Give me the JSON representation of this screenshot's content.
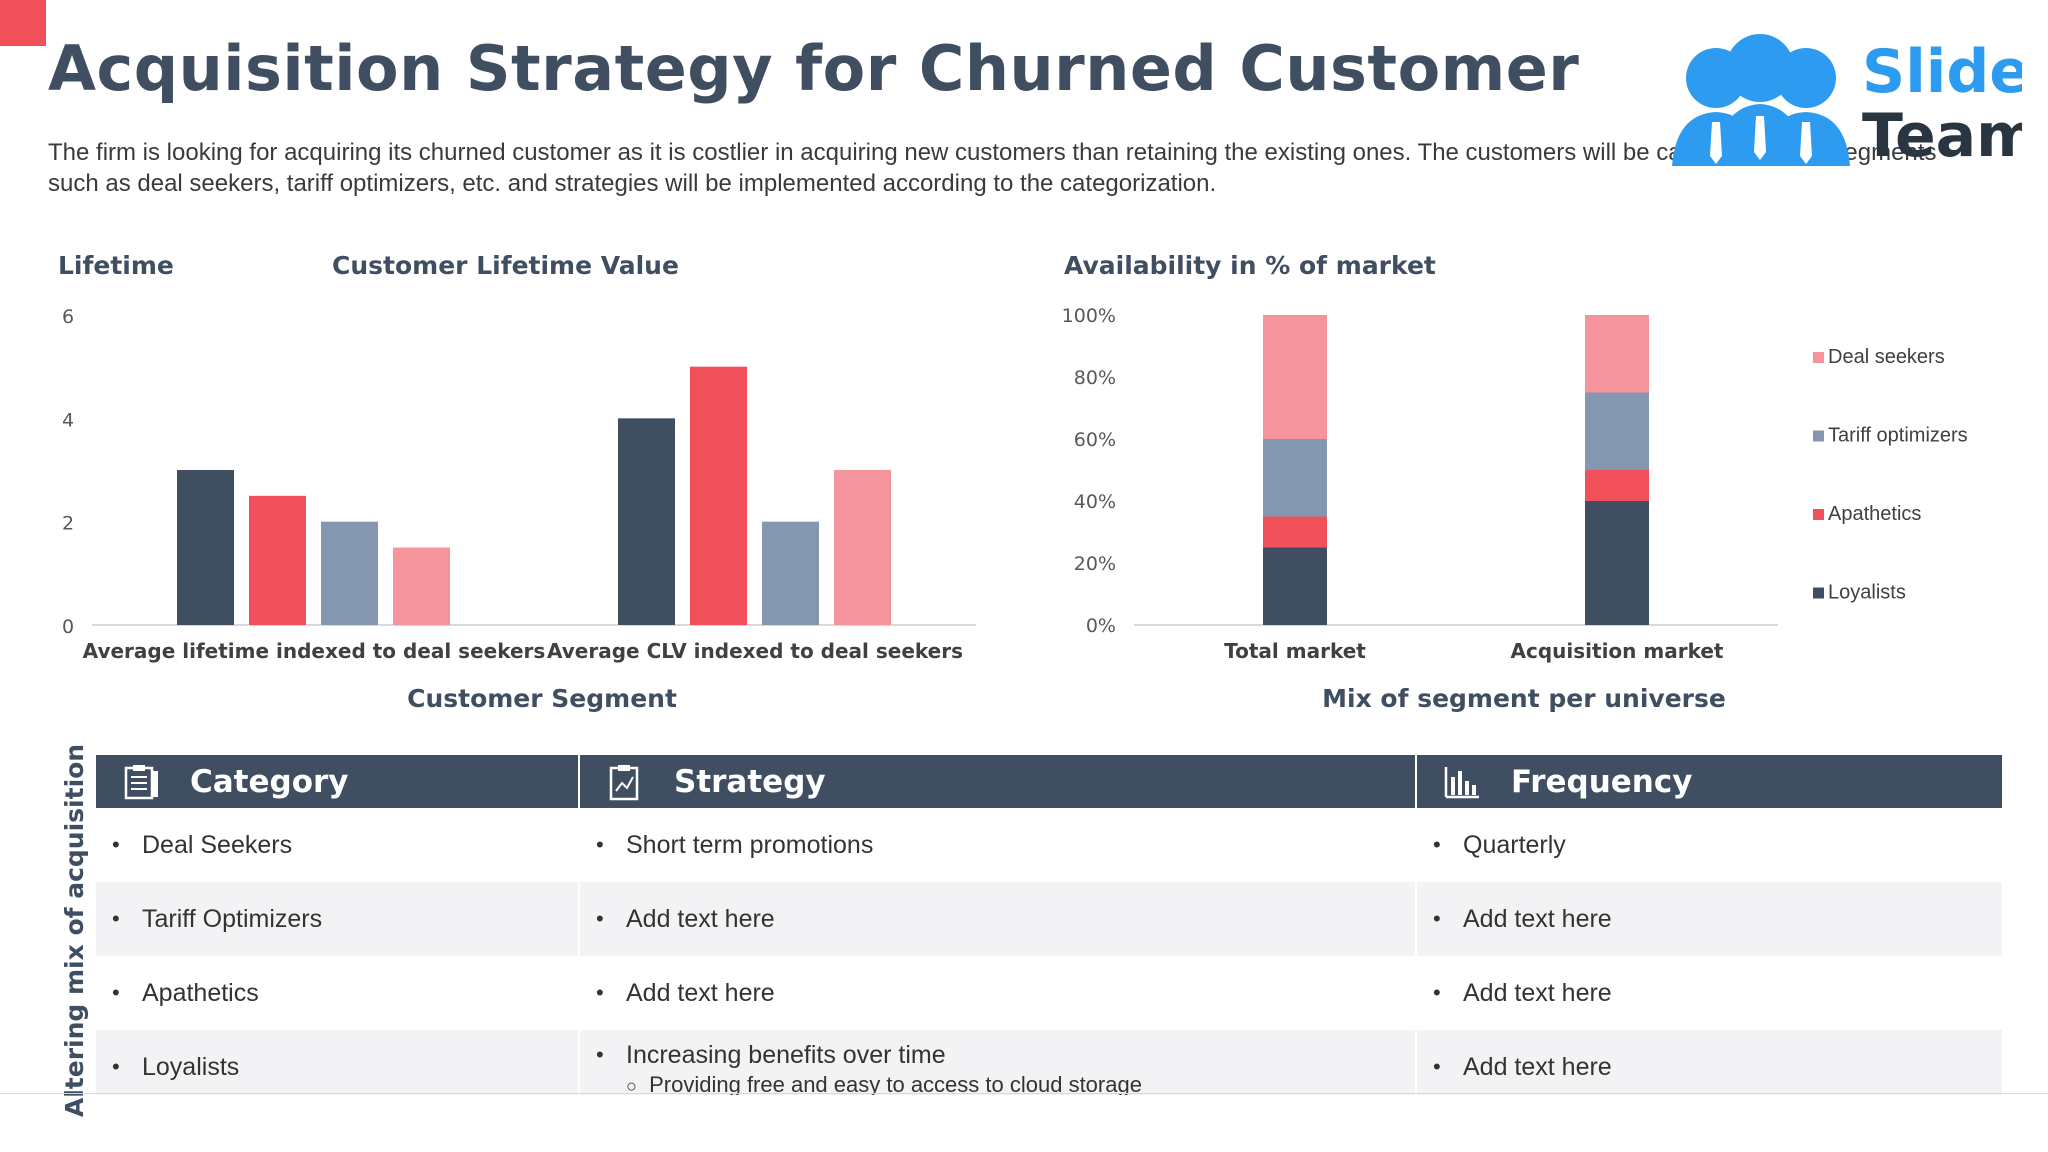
{
  "title": "Acquisition Strategy for Churned Customer",
  "description": "The firm is looking for acquiring its churned customer as it is costlier in acquiring new customers than retaining the existing ones. The customers will be categorized into segments such as deal seekers, tariff optimizers, etc. and strategies will be implemented according to the categorization.",
  "logo": {
    "line1": "Slide",
    "line2": "Team"
  },
  "colors": {
    "loyalists": "#404e62",
    "apathetics": "#f0505a",
    "tariff": "#8496b0",
    "deal": "#f5949c",
    "header": "#404e62"
  },
  "chart_data": [
    {
      "type": "bar",
      "title": "Customer Lifetime Value",
      "ylabel": "Lifetime",
      "xlabel": "Customer Segment",
      "categories": [
        "Average lifetime indexed to deal seekers",
        "Average CLV indexed to deal seekers"
      ],
      "ylim": [
        0,
        6
      ],
      "yticks": [
        "0",
        "2",
        "4",
        "6"
      ],
      "series": [
        {
          "values": [
            3,
            4
          ],
          "color": "#404e62"
        },
        {
          "values": [
            2.5,
            5
          ],
          "color": "#f0505a"
        },
        {
          "values": [
            2,
            2
          ],
          "color": "#8496b0"
        },
        {
          "values": [
            1.5,
            3
          ],
          "color": "#f5949c"
        }
      ],
      "grid": false
    },
    {
      "type": "bar",
      "stacked": true,
      "title": "Availability in % of market",
      "xlabel": "Mix of segment per universe",
      "categories": [
        "Total market",
        "Acquisition market"
      ],
      "ylim": [
        0,
        100
      ],
      "yticks": [
        "0%",
        "20%",
        "40%",
        "60%",
        "80%",
        "100%"
      ],
      "series": [
        {
          "name": "Loyalists",
          "values": [
            25,
            40
          ],
          "color": "#404e62"
        },
        {
          "name": "Apathetics",
          "values": [
            10,
            10
          ],
          "color": "#f0505a"
        },
        {
          "name": "Tariff optimizers",
          "values": [
            25,
            25
          ],
          "color": "#8496b0"
        },
        {
          "name": "Deal seekers",
          "values": [
            40,
            25
          ],
          "color": "#f5949c"
        }
      ],
      "legend_order": [
        "Deal seekers",
        "Tariff optimizers",
        "Apathetics",
        "Loyalists"
      ],
      "legend_position": "right",
      "grid": false
    }
  ],
  "table": {
    "side_label": "Altering mix of acquisition",
    "headers": [
      {
        "label": "Category",
        "icon": "clipboard-list-icon"
      },
      {
        "label": "Strategy",
        "icon": "clipboard-chart-icon"
      },
      {
        "label": "Frequency",
        "icon": "bar-chart-icon"
      }
    ],
    "rows": [
      {
        "category": "Deal Seekers",
        "strategy": "Short term promotions",
        "frequency": "Quarterly"
      },
      {
        "category": "Tariff Optimizers",
        "strategy": "Add text here",
        "frequency": "Add text here"
      },
      {
        "category": "Apathetics",
        "strategy": "Add text here",
        "frequency": "Add text here"
      },
      {
        "category": "Loyalists",
        "strategy": "Increasing benefits over time",
        "strategy_sub": "Providing free and easy to access to cloud storage",
        "frequency": "Add text here"
      }
    ]
  }
}
